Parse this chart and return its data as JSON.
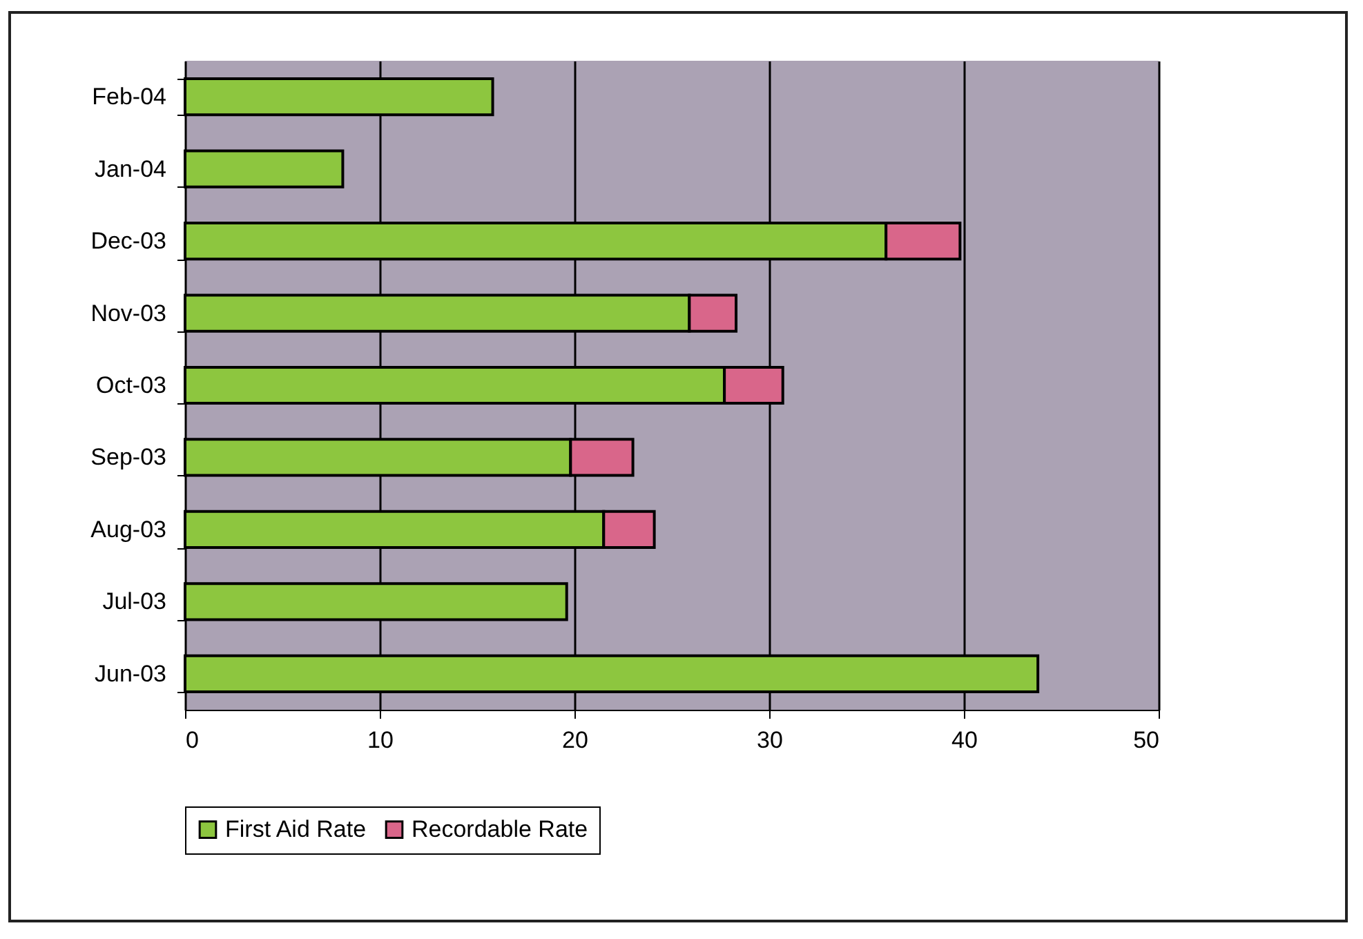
{
  "chart_data": {
    "type": "bar",
    "orientation": "horizontal",
    "stacked": true,
    "categories": [
      "Feb-04",
      "Jan-04",
      "Dec-03",
      "Nov-03",
      "Oct-03",
      "Sep-03",
      "Aug-03",
      "Jul-03",
      "Jun-03"
    ],
    "series": [
      {
        "name": "First Aid Rate",
        "color": "#8dc63f",
        "values": [
          15.8,
          8.1,
          36.0,
          25.9,
          27.7,
          19.8,
          21.5,
          19.6,
          43.8
        ]
      },
      {
        "name": "Recordable Rate",
        "color": "#d9668a",
        "values": [
          null,
          null,
          3.8,
          2.4,
          3.0,
          3.2,
          2.6,
          null,
          null
        ]
      }
    ],
    "xlim": [
      0,
      50
    ],
    "xticks": [
      0,
      10,
      20,
      30,
      40,
      50
    ],
    "grid": "x",
    "legend": "bottom"
  }
}
